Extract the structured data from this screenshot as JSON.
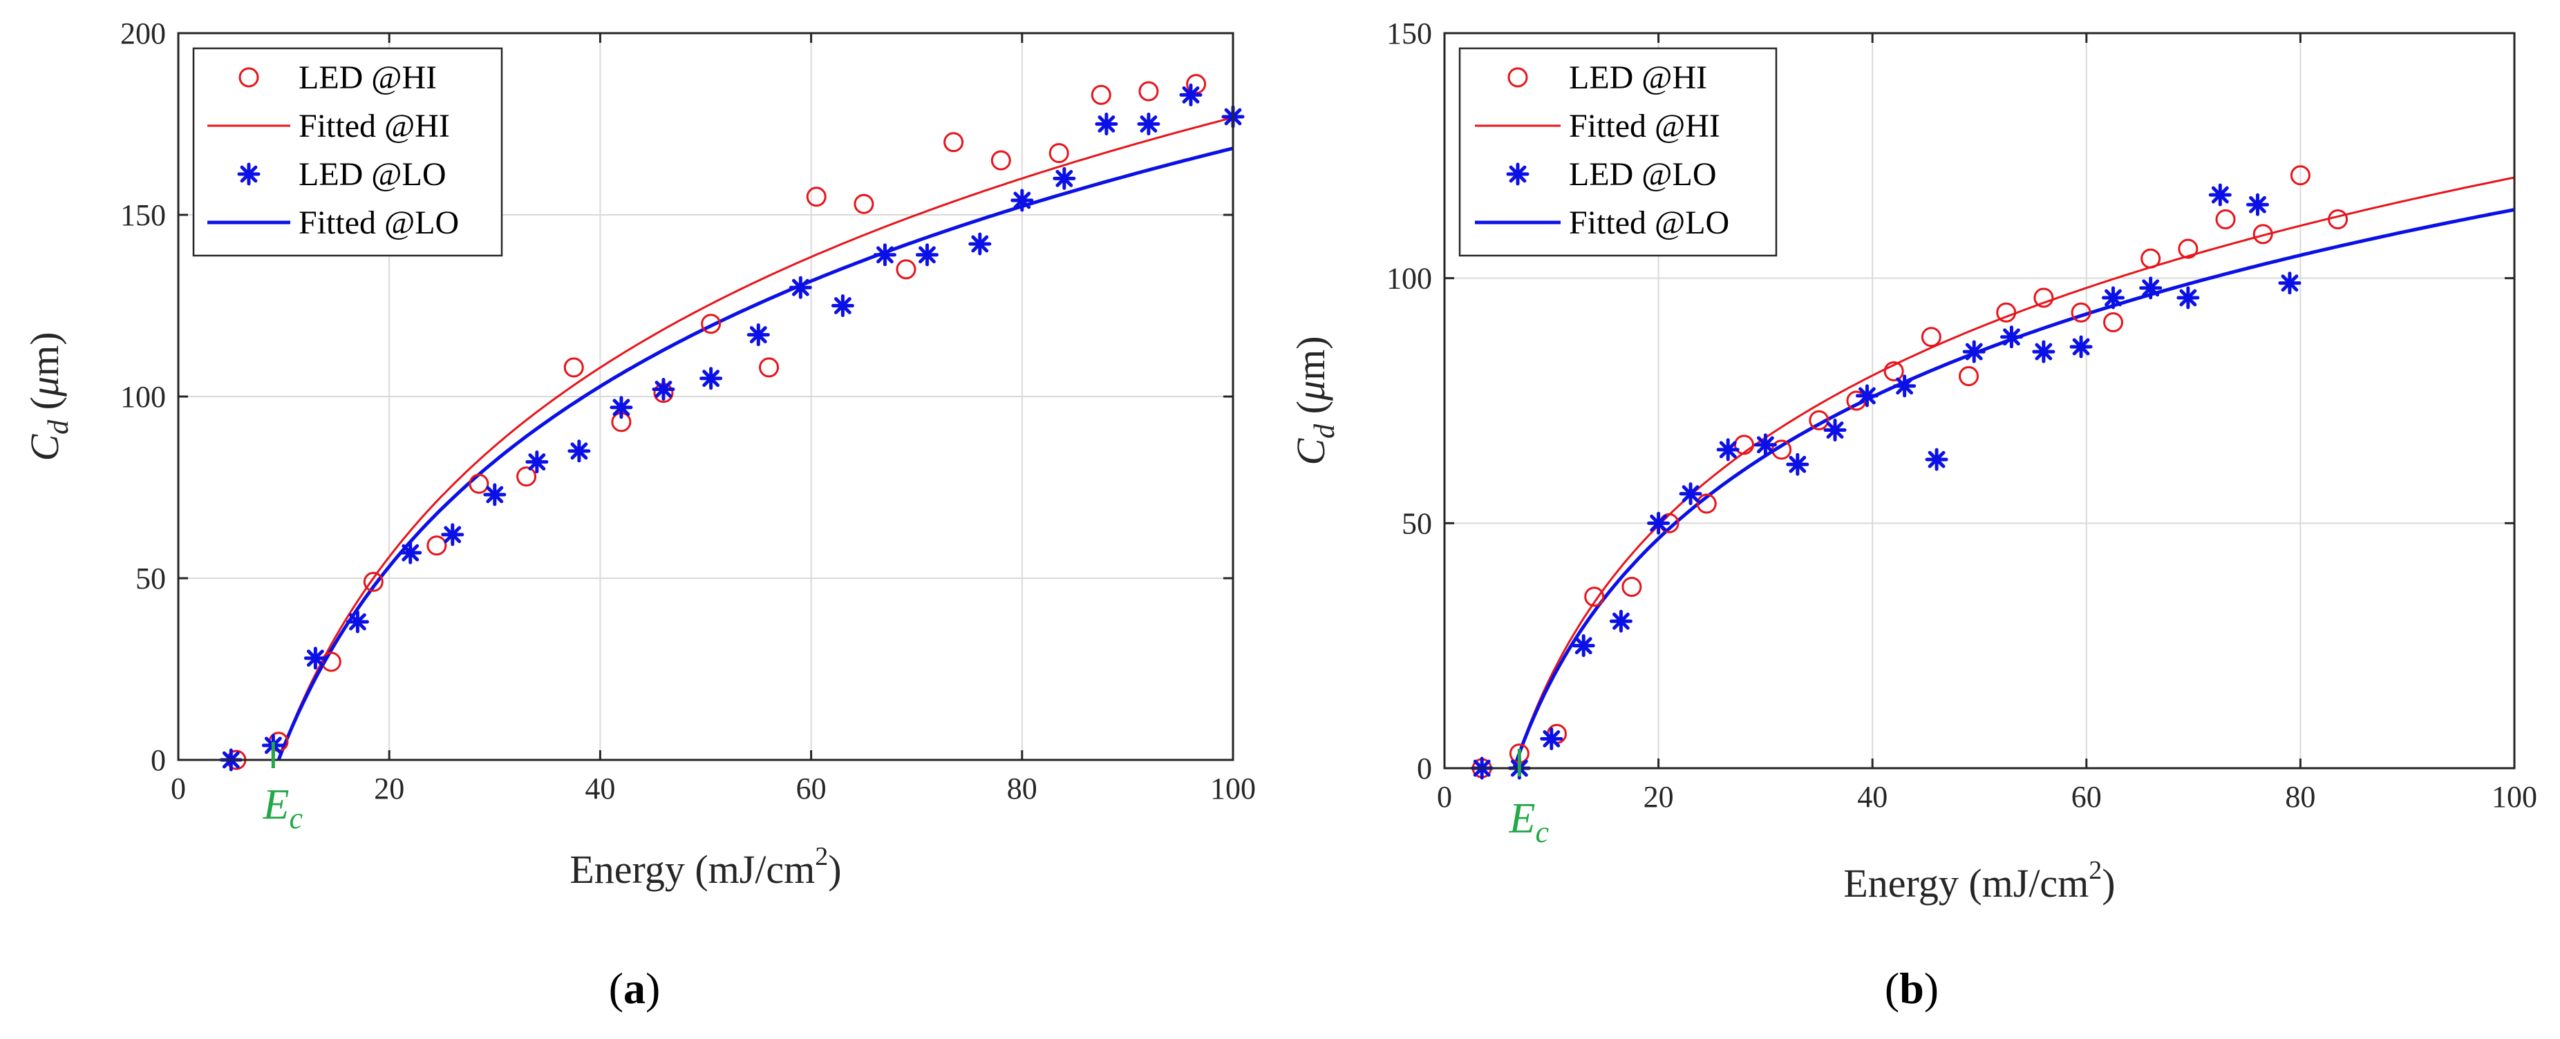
{
  "colors": {
    "hi": "#e8141a",
    "lo": "#0a10e6",
    "ec": "#22a847",
    "grid": "#d9d9d9",
    "axis": "#262626"
  },
  "chart_data": [
    {
      "type": "scatter",
      "panel_label": "a",
      "xlabel": "Energy (mJ/cm",
      "xlabel_sup": "2",
      "xlabel_close": ")",
      "ylabel_main": "C",
      "ylabel_sub": "d",
      "ylabel_unit_open": " (",
      "ylabel_mu": "μ",
      "ylabel_unit_rest": "m)",
      "xlim": [
        0,
        100
      ],
      "ylim": [
        0,
        200
      ],
      "xticks": [
        0,
        20,
        40,
        60,
        80,
        100
      ],
      "yticks": [
        0,
        50,
        100,
        150,
        200
      ],
      "grid": true,
      "legend_position": "top-left",
      "ec": {
        "x": 9,
        "label_main": "E",
        "label_sub": "c"
      },
      "series": [
        {
          "name": "LED @HI",
          "kind": "scatter",
          "marker": "circle",
          "x": [
            5.5,
            9.5,
            14.5,
            18.5,
            24.5,
            28.5,
            33,
            37.5,
            42,
            46,
            50.5,
            56,
            60.5,
            65,
            69,
            73.5,
            78,
            83.5,
            87.5,
            92,
            96.5
          ],
          "y": [
            0,
            5,
            27,
            49,
            59,
            76,
            78,
            108,
            93,
            101,
            120,
            108,
            155,
            153,
            135,
            170,
            165,
            167,
            183,
            184,
            186
          ]
        },
        {
          "name": "Fitted @HI",
          "kind": "line",
          "x0": 9.5,
          "x_end": 100,
          "a": 75.1
        },
        {
          "name": "LED @LO",
          "kind": "scatter",
          "marker": "asterisk",
          "x": [
            5,
            9,
            13,
            17,
            22,
            26,
            30,
            34,
            38,
            42,
            46,
            50.5,
            55,
            59,
            63,
            67,
            71,
            76,
            80,
            84,
            88,
            92,
            96,
            100
          ],
          "y": [
            0,
            4,
            28,
            38,
            57,
            62,
            73,
            82,
            85,
            97,
            102,
            105,
            117,
            130,
            125,
            139,
            139,
            142,
            154,
            160,
            175,
            175,
            183,
            177
          ]
        },
        {
          "name": "Fitted @LO",
          "kind": "line",
          "x0": 9.5,
          "x_end": 100,
          "a": 71.5
        }
      ]
    },
    {
      "type": "scatter",
      "panel_label": "b",
      "xlabel": "Energy (mJ/cm",
      "xlabel_sup": "2",
      "xlabel_close": ")",
      "ylabel_main": "C",
      "ylabel_sub": "d",
      "ylabel_unit_open": " (",
      "ylabel_mu": "μ",
      "ylabel_unit_rest": "m)",
      "xlim": [
        0,
        100
      ],
      "ylim": [
        0,
        150
      ],
      "xticks": [
        0,
        20,
        40,
        60,
        80,
        100
      ],
      "yticks": [
        0,
        50,
        100,
        150
      ],
      "grid": true,
      "legend_position": "top-left",
      "ec": {
        "x": 7,
        "label_main": "E",
        "label_sub": "c"
      },
      "series": [
        {
          "name": "LED @HI",
          "kind": "scatter",
          "marker": "circle",
          "x": [
            3.5,
            7,
            10.5,
            14,
            17.5,
            21,
            24.5,
            28,
            31.5,
            35,
            38.5,
            42,
            45.5,
            49,
            52.5,
            56,
            59.5,
            62.5,
            66,
            69.5,
            73,
            76.5,
            80,
            83.5
          ],
          "y": [
            0,
            3,
            7,
            35,
            37,
            50,
            54,
            66,
            65,
            71,
            75,
            81,
            88,
            80,
            93,
            96,
            93,
            91,
            104,
            106,
            112,
            109,
            121,
            112
          ]
        },
        {
          "name": "Fitted @HI",
          "kind": "line",
          "x0": 6.5,
          "x_end": 100,
          "a": 44.1
        },
        {
          "name": "LED @LO",
          "kind": "scatter",
          "marker": "asterisk",
          "x": [
            3.5,
            7,
            10,
            13,
            16.5,
            20,
            23,
            26.5,
            30,
            33,
            36.5,
            39.5,
            43,
            46,
            49.5,
            53,
            56,
            59.5,
            62.5,
            66,
            69.5,
            72.5,
            76,
            79
          ],
          "y": [
            0,
            0,
            6,
            25,
            30,
            50,
            56,
            65,
            66,
            62,
            69,
            76,
            78,
            63,
            85,
            88,
            85,
            86,
            96,
            98,
            96,
            117,
            115,
            99
          ]
        },
        {
          "name": "Fitted @LO",
          "kind": "line",
          "x0": 6.5,
          "x_end": 100,
          "a": 41.7
        }
      ]
    }
  ]
}
